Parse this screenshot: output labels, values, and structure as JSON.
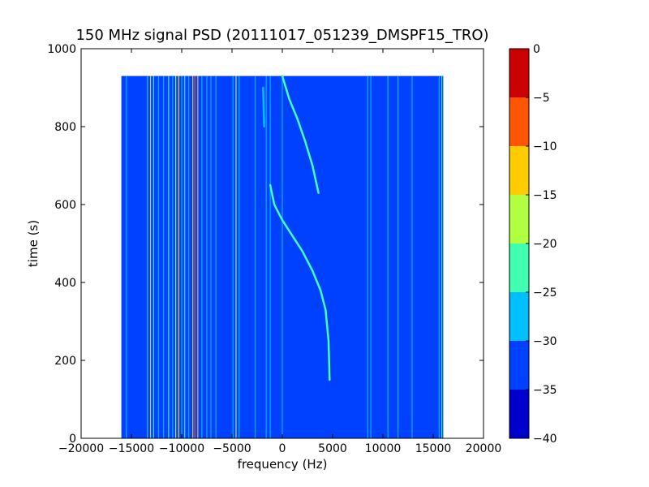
{
  "chart_data": {
    "type": "heatmap",
    "title": "150 MHz signal PSD (20111017_051239_DMSPF15_TRO)",
    "xlabel": "frequency (Hz)",
    "ylabel": "time (s)",
    "xlim": [
      -20000,
      20000
    ],
    "ylim": [
      0,
      1000
    ],
    "x_ticks": [
      -20000,
      -15000,
      -10000,
      -5000,
      0,
      5000,
      10000,
      15000,
      20000
    ],
    "y_ticks": [
      0,
      200,
      400,
      600,
      800,
      1000
    ],
    "data_extent": {
      "x": [
        -16000,
        16000
      ],
      "y": [
        0,
        930
      ]
    },
    "colorbar": {
      "range": [
        -40,
        0
      ],
      "ticks": [
        0,
        -5,
        -10,
        -15,
        -20,
        -25,
        -30,
        -35,
        -40
      ],
      "levels": [
        {
          "from": -40,
          "to": -35,
          "color": "#0000cd"
        },
        {
          "from": -35,
          "to": -30,
          "color": "#0040ff"
        },
        {
          "from": -30,
          "to": -25,
          "color": "#00bfff"
        },
        {
          "from": -25,
          "to": -20,
          "color": "#40ffb0"
        },
        {
          "from": -20,
          "to": -15,
          "color": "#b0ff40"
        },
        {
          "from": -15,
          "to": -10,
          "color": "#ffcc00"
        },
        {
          "from": -10,
          "to": -5,
          "color": "#ff5500"
        },
        {
          "from": -5,
          "to": 0,
          "color": "#cc0000"
        }
      ]
    },
    "background_level": -33,
    "background_color": "#0040ff",
    "vertical_lines": [
      {
        "freq": -15500,
        "width": 70,
        "color": "#00bfff"
      },
      {
        "freq": -13400,
        "width": 120,
        "color": "#00bfff"
      },
      {
        "freq": -13100,
        "width": 90,
        "color": "#ffcc00"
      },
      {
        "freq": -12800,
        "width": 60,
        "color": "#40ffb0"
      },
      {
        "freq": -12300,
        "width": 80,
        "color": "#00bfff"
      },
      {
        "freq": -11800,
        "width": 70,
        "color": "#00bfff"
      },
      {
        "freq": -11300,
        "width": 100,
        "color": "#40ffb0"
      },
      {
        "freq": -10900,
        "width": 80,
        "color": "#00bfff"
      },
      {
        "freq": -10600,
        "width": 90,
        "color": "#b0ff40"
      },
      {
        "freq": -10300,
        "width": 110,
        "color": "#ffcc00"
      },
      {
        "freq": -10000,
        "width": 90,
        "color": "#00bfff"
      },
      {
        "freq": -9700,
        "width": 70,
        "color": "#40ffb0"
      },
      {
        "freq": -9300,
        "width": 90,
        "color": "#00bfff"
      },
      {
        "freq": -8900,
        "width": 80,
        "color": "#ffcc00"
      },
      {
        "freq": -8700,
        "width": 80,
        "color": "#ff5500"
      },
      {
        "freq": -8400,
        "width": 80,
        "color": "#ffcc00"
      },
      {
        "freq": -8000,
        "width": 70,
        "color": "#00bfff"
      },
      {
        "freq": -7500,
        "width": 70,
        "color": "#00bfff"
      },
      {
        "freq": -7100,
        "width": 60,
        "color": "#00bfff"
      },
      {
        "freq": -6600,
        "width": 60,
        "color": "#00bfff"
      },
      {
        "freq": -4900,
        "width": 80,
        "color": "#00bfff"
      },
      {
        "freq": -4600,
        "width": 90,
        "color": "#b0ff40"
      },
      {
        "freq": -4300,
        "width": 70,
        "color": "#00bfff"
      },
      {
        "freq": -2700,
        "width": 60,
        "color": "#00bfff"
      },
      {
        "freq": -1600,
        "width": 60,
        "color": "#00bfff"
      },
      {
        "freq": -1200,
        "width": 50,
        "color": "#00bfff"
      },
      {
        "freq": 0,
        "width": 60,
        "color": "#00bfff"
      },
      {
        "freq": 8500,
        "width": 90,
        "color": "#00bfff"
      },
      {
        "freq": 8800,
        "width": 60,
        "color": "#00bfff"
      },
      {
        "freq": 10500,
        "width": 50,
        "color": "#00bfff"
      },
      {
        "freq": 11500,
        "width": 40,
        "color": "#00bfff"
      },
      {
        "freq": 12900,
        "width": 80,
        "color": "#00bfff"
      },
      {
        "freq": 15600,
        "width": 60,
        "color": "#00bfff"
      },
      {
        "freq": 15850,
        "width": 80,
        "color": "#40ffb0"
      }
    ],
    "doppler_tracks": [
      {
        "color": "#40ffb0",
        "points": [
          [
            4700,
            150
          ],
          [
            4600,
            250
          ],
          [
            4300,
            330
          ],
          [
            3800,
            380
          ],
          [
            3000,
            430
          ],
          [
            2000,
            480
          ],
          [
            1000,
            520
          ],
          [
            0,
            560
          ],
          [
            -800,
            600
          ],
          [
            -1200,
            650
          ]
        ]
      },
      {
        "color": "#40ffb0",
        "points": [
          [
            3600,
            630
          ],
          [
            3000,
            700
          ],
          [
            2300,
            760
          ],
          [
            1500,
            820
          ],
          [
            700,
            870
          ],
          [
            0,
            930
          ]
        ]
      },
      {
        "color": "#00bfff",
        "points": [
          [
            -1900,
            900
          ],
          [
            -1800,
            800
          ]
        ]
      }
    ]
  }
}
